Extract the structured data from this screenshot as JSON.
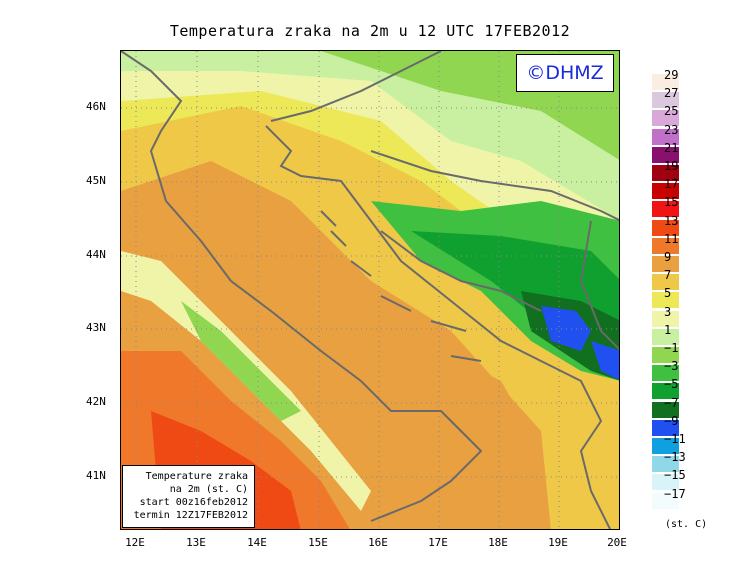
{
  "title": "Temperatura zraka na 2m u 12 UTC 17FEB2012",
  "logo": "©DHMZ",
  "info_box": {
    "line1": "Temperature zraka",
    "line2": "na 2m (st. C)",
    "line3": "start 00z16feb2012",
    "line4": "termin 12Z17FEB2012"
  },
  "axes": {
    "lat_labels": [
      "46N",
      "45N",
      "44N",
      "43N",
      "42N",
      "41N"
    ],
    "lon_labels": [
      "12E",
      "13E",
      "14E",
      "15E",
      "16E",
      "17E",
      "18E",
      "19E",
      "20E"
    ]
  },
  "legend": {
    "labels": [
      "29",
      "27",
      "25",
      "23",
      "21",
      "19",
      "17",
      "15",
      "13",
      "11",
      "9",
      "7",
      "5",
      "3",
      "1",
      "−1",
      "−3",
      "−5",
      "−7",
      "−9",
      "−11",
      "−13",
      "−15",
      "−17"
    ],
    "colors": [
      "#faeee2",
      "#dcc8dc",
      "#d8a8d8",
      "#c070c8",
      "#8a1070",
      "#a00010",
      "#c80000",
      "#f01414",
      "#f04a14",
      "#f0782a",
      "#e8a040",
      "#f0c848",
      "#ece858",
      "#f0f4a8",
      "#c8f0a0",
      "#90d650",
      "#40c040",
      "#10a030",
      "#107020",
      "#2050f0",
      "#10a0e0",
      "#90d8e8",
      "#d8f4f8",
      "#f2fcfc"
    ],
    "unit": "(st. C)"
  }
}
